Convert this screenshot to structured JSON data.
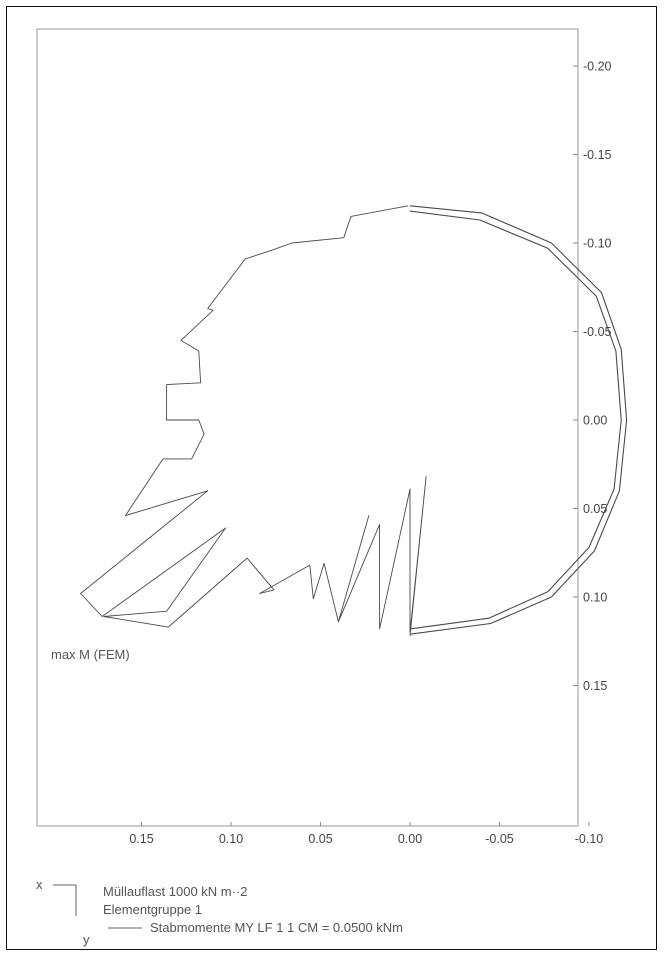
{
  "figure": {
    "annotation": "max M (FEM)",
    "legend": {
      "axis_x_label": "x",
      "axis_y_label": "y",
      "line1": "Müllauflast 1000 kN m··2",
      "line2": "Elementgruppe 1",
      "line3": "Stabmomente MY LF 1 1 CM = 0.0500 kNm"
    }
  },
  "chart_data": {
    "type": "line",
    "title": "",
    "xlabel": "",
    "ylabel": "",
    "xlim": [
      0.2,
      -0.1
    ],
    "ylim": [
      0.2,
      -0.2
    ],
    "x_ticks": [
      0.15,
      0.1,
      0.05,
      0.0,
      -0.05,
      -0.1
    ],
    "x_tick_labels": [
      "0.15",
      "0.10",
      "0.05",
      "0.00",
      "-0.05",
      "-0.10"
    ],
    "y_ticks": [
      -0.2,
      -0.15,
      -0.1,
      -0.05,
      0.0,
      0.05,
      0.1,
      0.15
    ],
    "y_tick_labels": [
      "-0.20",
      "-0.15",
      "-0.10",
      "-0.05",
      "0.00",
      "0.05",
      "0.10",
      "0.15"
    ],
    "grid": false,
    "series": [
      {
        "role": "structure outer",
        "points": [
          [
            0.0,
            -0.121
          ],
          [
            -0.04,
            -0.117
          ],
          [
            -0.079,
            -0.1
          ],
          [
            -0.107,
            -0.072
          ],
          [
            -0.118,
            -0.04
          ],
          [
            -0.121,
            0.0
          ],
          [
            -0.117,
            0.04
          ],
          [
            -0.103,
            0.074
          ],
          [
            -0.079,
            0.1
          ],
          [
            -0.045,
            0.115
          ],
          [
            0.0,
            0.121
          ]
        ]
      },
      {
        "role": "structure inner",
        "points": [
          [
            0.0,
            -0.118
          ],
          [
            -0.039,
            -0.113
          ],
          [
            -0.077,
            -0.097
          ],
          [
            -0.104,
            -0.07
          ],
          [
            -0.115,
            -0.039
          ],
          [
            -0.118,
            0.0
          ],
          [
            -0.114,
            0.039
          ],
          [
            -0.1,
            0.072
          ],
          [
            -0.077,
            0.097
          ],
          [
            -0.044,
            0.112
          ],
          [
            0.0,
            0.118
          ]
        ]
      },
      {
        "role": "moment diagram",
        "points": [
          [
            0.0,
            0.122
          ],
          [
            -0.009,
            0.032
          ],
          [
            0.0,
            0.12
          ],
          [
            0.0,
            0.039
          ],
          [
            0.017,
            0.118
          ],
          [
            0.017,
            0.059
          ],
          [
            0.04,
            0.114
          ],
          [
            0.023,
            0.054
          ],
          [
            0.04,
            0.114
          ],
          [
            0.048,
            0.081
          ],
          [
            0.054,
            0.101
          ],
          [
            0.056,
            0.082
          ],
          [
            0.084,
            0.098
          ],
          [
            0.076,
            0.096
          ],
          [
            0.091,
            0.078
          ],
          [
            0.135,
            0.117
          ],
          [
            0.171,
            0.111
          ],
          [
            0.136,
            0.108
          ],
          [
            0.103,
            0.061
          ],
          [
            0.172,
            0.111
          ],
          [
            0.184,
            0.098
          ],
          [
            0.113,
            0.04
          ],
          [
            0.159,
            0.054
          ],
          [
            0.138,
            0.022
          ],
          [
            0.122,
            0.022
          ],
          [
            0.115,
            0.008
          ],
          [
            0.118,
            0.0
          ],
          [
            0.136,
            0.0
          ],
          [
            0.136,
            -0.02
          ],
          [
            0.117,
            -0.021
          ],
          [
            0.118,
            -0.039
          ],
          [
            0.128,
            -0.045
          ],
          [
            0.11,
            -0.062
          ],
          [
            0.113,
            -0.063
          ],
          [
            0.092,
            -0.091
          ],
          [
            0.077,
            -0.096
          ],
          [
            0.066,
            -0.1
          ],
          [
            0.037,
            -0.103
          ],
          [
            0.033,
            -0.115
          ],
          [
            0.001,
            -0.121
          ]
        ]
      }
    ]
  }
}
